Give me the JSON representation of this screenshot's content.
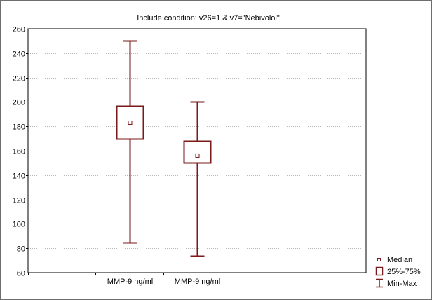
{
  "chart_data": {
    "type": "box",
    "title": "Include condition: v26=1 & v7=\"Nebivolol\"",
    "xlabel": "",
    "ylabel": "",
    "categories": [
      "MMP-9 ng/ml",
      "MMP-9 ng/ml"
    ],
    "boxes": [
      {
        "min": 85,
        "q1": 170,
        "median": 183,
        "q3": 197,
        "max": 250
      },
      {
        "min": 74,
        "q1": 150,
        "median": 156,
        "q3": 168,
        "max": 200
      }
    ],
    "ylim": [
      60,
      260
    ],
    "yticks": [
      60,
      80,
      100,
      120,
      140,
      160,
      180,
      200,
      220,
      240,
      260
    ],
    "ytick_labels": [
      "60",
      "80",
      "100",
      "120",
      "140",
      "160",
      "180",
      "200",
      "220",
      "240",
      "260"
    ],
    "grid": "horizontal-dotted",
    "legend": {
      "placement": "bottom-right",
      "entries": [
        {
          "symbol": "median-square",
          "label": "Median"
        },
        {
          "symbol": "box",
          "label": "25%-75%"
        },
        {
          "symbol": "whisker",
          "label": "Min-Max"
        }
      ]
    },
    "colors": {
      "box": "#7a1a1a",
      "grid": "#b8b8b8",
      "axis": "#000000"
    }
  }
}
